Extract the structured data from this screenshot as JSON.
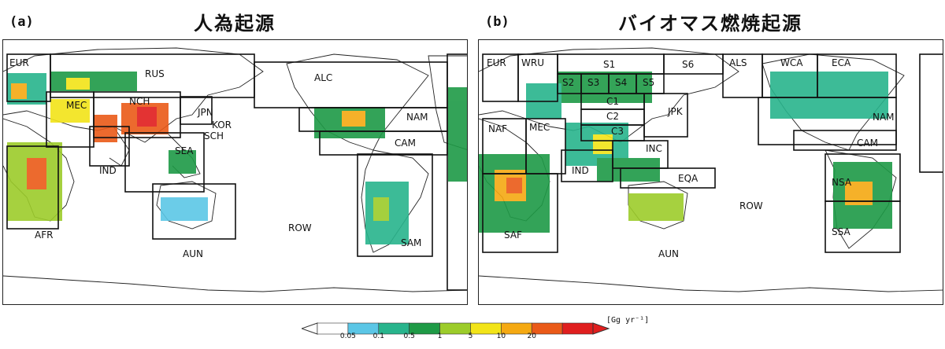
{
  "panels": [
    {
      "tag": "(a)",
      "title": "人為起源",
      "regions": [
        "EUR",
        "RUS",
        "ALC",
        "MEC",
        "NCH",
        "JPN",
        "KOR",
        "SCH",
        "NAM",
        "IND",
        "SEA",
        "CAM",
        "AFR",
        "AUN",
        "ROW",
        "SAM"
      ]
    },
    {
      "tag": "(b)",
      "title": "バイオマス燃焼起源",
      "regions": [
        "EUR",
        "WRU",
        "S1",
        "S6",
        "ALS",
        "WCA",
        "ECA",
        "S2",
        "S3",
        "S4",
        "S5",
        "C1",
        "C2",
        "C3",
        "JPK",
        "NAF",
        "MEC",
        "NAM",
        "INC",
        "IND",
        "CAM",
        "EQA",
        "NSA",
        "ROW",
        "SAF",
        "SSA",
        "AUN"
      ]
    }
  ],
  "colorbar": {
    "ticks": [
      "0.05",
      "0.1",
      "0.5",
      "1",
      "5",
      "10",
      "20"
    ],
    "unit": "[Gg yr⁻¹]",
    "colors": [
      "#ffffff",
      "#5bc6e6",
      "#28b48c",
      "#1e9a46",
      "#9ccc2a",
      "#f2e418",
      "#f5a912",
      "#ea5a18",
      "#e01e1e"
    ]
  }
}
